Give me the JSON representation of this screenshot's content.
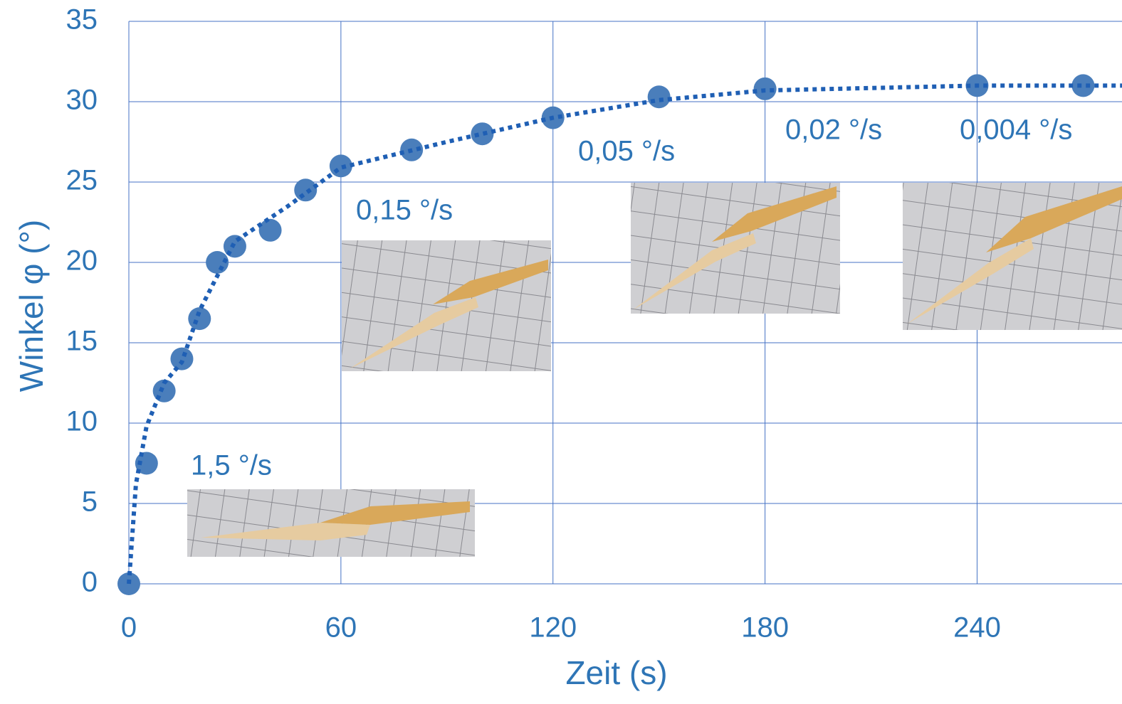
{
  "chart_data": {
    "type": "scatter",
    "x_label": "Zeit (s)",
    "y_label": "Winkel φ (°)",
    "xlim": [
      0,
      281
    ],
    "ylim": [
      0,
      35
    ],
    "xticks": [
      0,
      60,
      120,
      180,
      240
    ],
    "yticks": [
      0,
      5,
      10,
      15,
      20,
      25,
      30,
      35
    ],
    "grid": true,
    "series": [
      {
        "color": "#4a7ebb",
        "x": [
          0,
          5,
          10,
          15,
          20,
          25,
          30,
          40,
          50,
          60,
          80,
          100,
          120,
          150,
          180,
          240,
          270
        ],
        "values": [
          0,
          7.5,
          12,
          14,
          16.5,
          20,
          21,
          22,
          24.5,
          26,
          27,
          28,
          29,
          30.3,
          30.8,
          31,
          31
        ]
      },
      {
        "type": "line",
        "color": "#1f5fb4",
        "x": [
          0,
          2,
          5,
          10,
          15,
          20,
          30,
          45,
          60,
          90,
          120,
          150,
          180,
          240,
          281
        ],
        "values": [
          0,
          6.2,
          9.8,
          12.5,
          13.8,
          17,
          21.3,
          23.5,
          25.9,
          27.5,
          29,
          30.1,
          30.7,
          31,
          31
        ]
      }
    ],
    "annotations": [
      "1,5 °/s",
      "0,15 °/s",
      "0,05 °/s",
      "0,02 °/s",
      "0,004 °/s"
    ]
  }
}
